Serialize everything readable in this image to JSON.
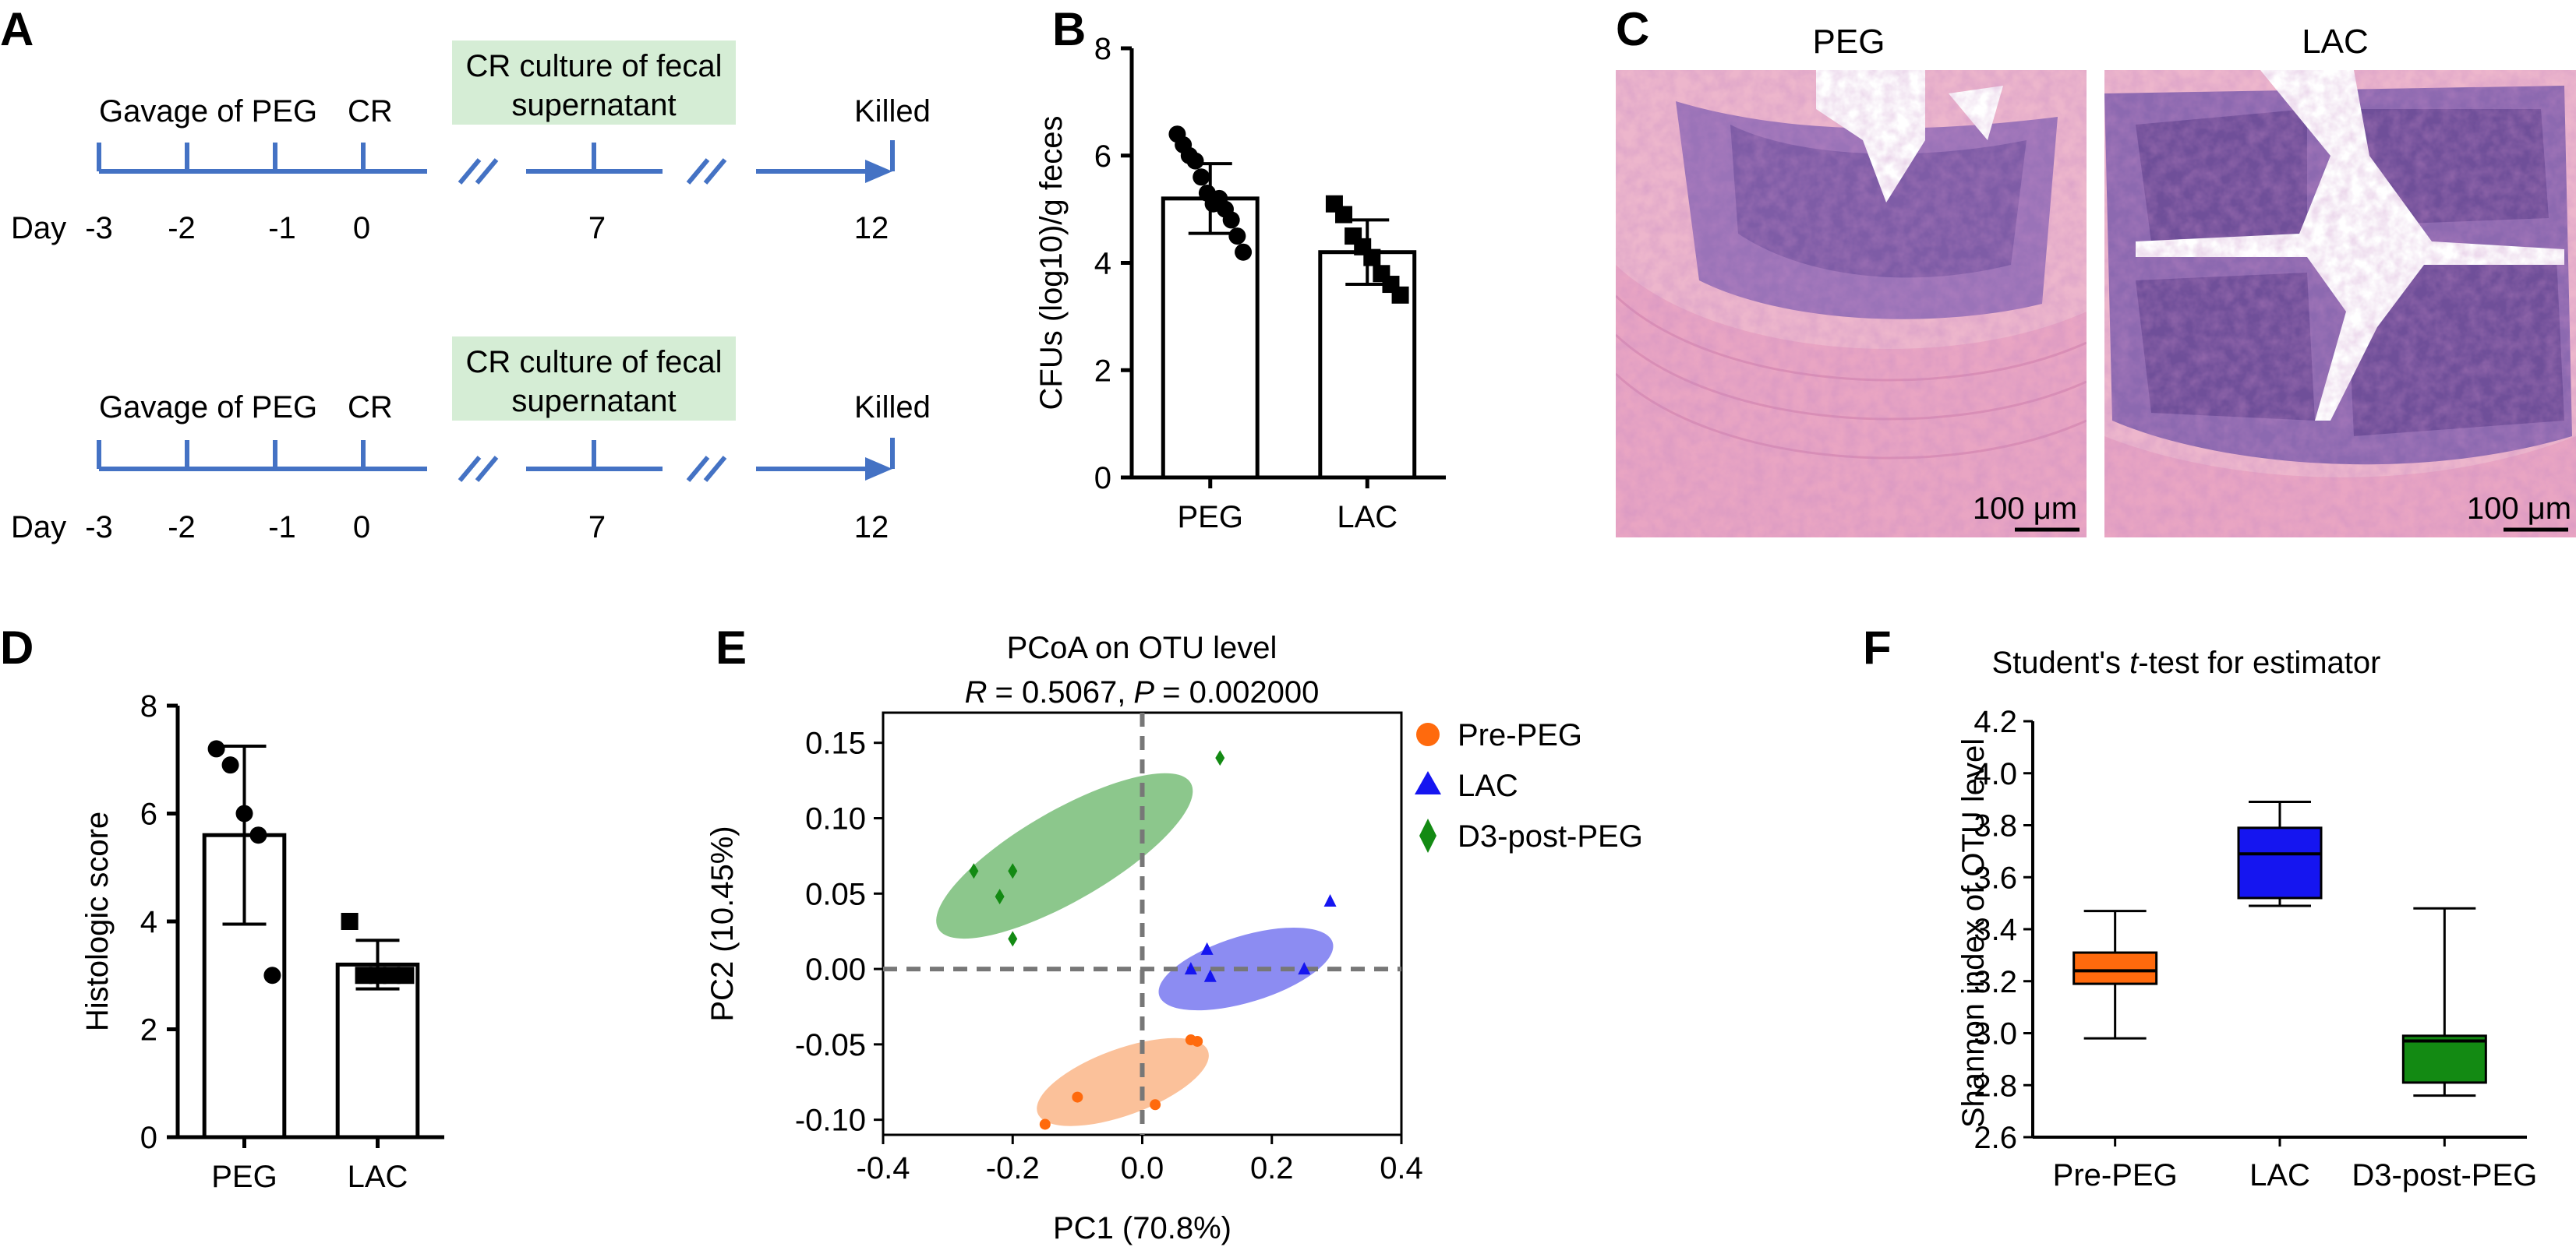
{
  "panels": {
    "a": "A",
    "b": "B",
    "c": "C",
    "d": "D",
    "e": "E",
    "f": "F"
  },
  "colors": {
    "timeline_blue": "#4472C4",
    "box_green": "#D5EDD5",
    "pre_peg": "#FF6A0D",
    "lac": "#1515F0",
    "d3_post_peg": "#138A13",
    "ellipse_pre": "#FBC19A",
    "ellipse_lac": "#8C8CF2",
    "ellipse_d3": "#8CC78C",
    "histo_pink": "#E7A9C7",
    "histo_purple": "#7E5CA6"
  },
  "timeline": {
    "rows": [
      {
        "box_label_1": "CR culture of fecal",
        "box_label_2": "supernatant",
        "gavage_label": "Gavage of PEG",
        "cr_label": "CR",
        "killed_label": "Killed",
        "day_label": "Day",
        "days": [
          "-3",
          "-2",
          "-1",
          "0",
          "7",
          "12"
        ]
      },
      {
        "box_label_1": "CR culture of fecal",
        "box_label_2": "supernatant",
        "gavage_label": "Gavage of PEG",
        "cr_label": "CR",
        "killed_label": "Killed",
        "day_label": "Day",
        "days": [
          "-3",
          "-2",
          "-1",
          "0",
          "7",
          "12"
        ]
      }
    ]
  },
  "histology": {
    "left_title": "PEG",
    "right_title": "LAC",
    "scale_left": "100 μm",
    "scale_right": "100 μm"
  },
  "chart_data": [
    {
      "panel": "B",
      "type": "bar",
      "ylabel": "CFUs (log10)/g feces",
      "categories": [
        "PEG",
        "LAC"
      ],
      "values": [
        5.2,
        4.2
      ],
      "errors": [
        0.65,
        0.6
      ],
      "ylim": [
        0,
        8
      ],
      "yticks": [
        "0",
        "2",
        "4",
        "6",
        "8"
      ],
      "points": [
        {
          "group": "PEG",
          "marker": "circle",
          "values": [
            6.4,
            6.2,
            6.0,
            5.9,
            5.6,
            5.3,
            5.1,
            5.2,
            5.0,
            4.8,
            4.5,
            4.2
          ]
        },
        {
          "group": "LAC",
          "marker": "square",
          "values": [
            5.1,
            4.9,
            4.5,
            4.3,
            4.1,
            3.8,
            3.6,
            3.4
          ]
        }
      ]
    },
    {
      "panel": "D",
      "type": "bar",
      "ylabel": "Histologic score",
      "categories": [
        "PEG",
        "LAC"
      ],
      "values": [
        5.6,
        3.2
      ],
      "errors": [
        1.65,
        0.45
      ],
      "ylim": [
        0,
        8
      ],
      "yticks": [
        "0",
        "2",
        "4",
        "6",
        "8"
      ],
      "points": [
        {
          "group": "PEG",
          "marker": "circle",
          "values": [
            7.2,
            6.9,
            6.0,
            5.6,
            3.0
          ]
        },
        {
          "group": "LAC",
          "marker": "square",
          "values": [
            4.0,
            3.0,
            3.0,
            3.0,
            3.0
          ]
        }
      ]
    },
    {
      "panel": "E",
      "type": "scatter",
      "title": "PCoA on OTU level",
      "subtitle_r_label": "R",
      "subtitle_r": "= 0.5067,",
      "subtitle_p_label": "P",
      "subtitle_p": "= 0.002000",
      "xlabel": "PC1 (70.8%)",
      "ylabel": "PC2 (10.45%)",
      "xlim": [
        -0.4,
        0.4
      ],
      "ylim": [
        -0.11,
        0.17
      ],
      "xticks": [
        "-0.4",
        "-0.2",
        "0.0",
        "0.2",
        "0.4"
      ],
      "yticks": [
        "-0.10",
        "-0.05",
        "0.00",
        "0.05",
        "0.10",
        "0.15"
      ],
      "legend": [
        "Pre-PEG",
        "LAC",
        "D3-post-PEG"
      ],
      "series": [
        {
          "name": "Pre-PEG",
          "marker": "circle",
          "points": [
            [
              -0.15,
              -0.103
            ],
            [
              -0.1,
              -0.085
            ],
            [
              0.02,
              -0.09
            ],
            [
              0.075,
              -0.047
            ],
            [
              0.085,
              -0.048
            ]
          ]
        },
        {
          "name": "LAC",
          "marker": "triangle",
          "points": [
            [
              0.075,
              0.0
            ],
            [
              0.1,
              0.013
            ],
            [
              0.105,
              -0.005
            ],
            [
              0.25,
              0.0
            ],
            [
              0.29,
              0.045
            ]
          ]
        },
        {
          "name": "D3-post-PEG",
          "marker": "diamond",
          "points": [
            [
              -0.26,
              0.065
            ],
            [
              -0.22,
              0.048
            ],
            [
              -0.2,
              0.065
            ],
            [
              -0.2,
              0.02
            ],
            [
              0.12,
              0.14
            ]
          ]
        }
      ],
      "ellipses": [
        {
          "name": "Pre-PEG",
          "center": [
            -0.03,
            -0.075
          ],
          "rx": 0.14,
          "ry": 0.022,
          "angle": 20
        },
        {
          "name": "LAC",
          "center": [
            0.16,
            0.0
          ],
          "rx": 0.14,
          "ry": 0.022,
          "angle": 17
        },
        {
          "name": "D3-post-PEG",
          "center": [
            -0.12,
            0.075
          ],
          "rx": 0.225,
          "ry": 0.03,
          "angle": 30
        }
      ]
    },
    {
      "panel": "F",
      "type": "box",
      "title_prefix": "Student's ",
      "title_t": "t",
      "title_suffix": "-test for estimator",
      "ylabel": "Shannon index of OTU level",
      "ylim": [
        2.6,
        4.2
      ],
      "yticks": [
        "2.6",
        "2.8",
        "3.0",
        "3.2",
        "3.4",
        "3.6",
        "3.8",
        "4.0",
        "4.2"
      ],
      "categories": [
        "Pre-PEG",
        "LAC",
        "D3-post-PEG"
      ],
      "boxes": [
        {
          "name": "Pre-PEG",
          "min": 2.98,
          "q1": 3.19,
          "median": 3.24,
          "q3": 3.31,
          "max": 3.47
        },
        {
          "name": "LAC",
          "min": 3.49,
          "q1": 3.52,
          "median": 3.69,
          "q3": 3.79,
          "max": 3.89
        },
        {
          "name": "D3-post-PEG",
          "min": 2.76,
          "q1": 2.81,
          "median": 2.97,
          "q3": 2.99,
          "max": 3.48
        }
      ]
    }
  ]
}
